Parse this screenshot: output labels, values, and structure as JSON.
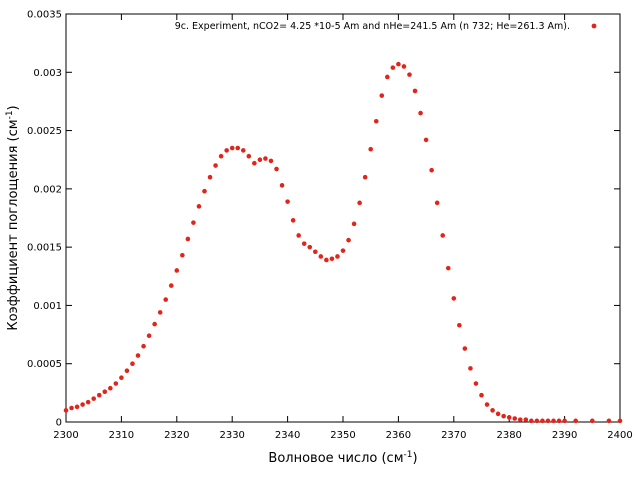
{
  "chart_data": {
    "type": "scatter",
    "xlabel": "Волновое число (см",
    "xlabel_sup": "-1",
    "xlabel_tail": ")",
    "ylabel": "Коэффициент поглощения (см",
    "ylabel_sup": "-1",
    "ylabel_tail": ")",
    "xlim": [
      2300,
      2400
    ],
    "ylim": [
      0,
      0.0035
    ],
    "x_ticks": [
      "2300",
      "2310",
      "2320",
      "2330",
      "2340",
      "2350",
      "2360",
      "2370",
      "2380",
      "2390",
      "2400"
    ],
    "y_ticks": [
      "0",
      "0.0005",
      "0.001",
      "0.0015",
      "0.002",
      "0.0025",
      "0.003",
      "0.0035"
    ],
    "grid": false,
    "legend_position": "top-right",
    "marker_color": "#e3241b",
    "series": [
      {
        "name": "9c. Experiment, nCO2= 4.25 *10-5 Am and nHe=241.5 Am (n  732; He=261.3 Am).",
        "x": [
          2300,
          2301,
          2302,
          2303,
          2304,
          2305,
          2306,
          2307,
          2308,
          2309,
          2310,
          2311,
          2312,
          2313,
          2314,
          2315,
          2316,
          2317,
          2318,
          2319,
          2320,
          2321,
          2322,
          2323,
          2324,
          2325,
          2326,
          2327,
          2328,
          2329,
          2330,
          2331,
          2332,
          2333,
          2334,
          2335,
          2336,
          2337,
          2338,
          2339,
          2340,
          2341,
          2342,
          2343,
          2344,
          2345,
          2346,
          2347,
          2348,
          2349,
          2350,
          2351,
          2352,
          2353,
          2354,
          2355,
          2356,
          2357,
          2358,
          2359,
          2360,
          2361,
          2362,
          2363,
          2364,
          2365,
          2366,
          2367,
          2368,
          2369,
          2370,
          2371,
          2372,
          2373,
          2374,
          2375,
          2376,
          2377,
          2378,
          2379,
          2380,
          2381,
          2382,
          2383,
          2384,
          2385,
          2386,
          2387,
          2388,
          2389,
          2390,
          2392,
          2395,
          2398,
          2400
        ],
        "y": [
          0.0001,
          0.00012,
          0.00013,
          0.00015,
          0.00017,
          0.0002,
          0.00023,
          0.00026,
          0.00029,
          0.00033,
          0.00038,
          0.00044,
          0.0005,
          0.00057,
          0.00065,
          0.00074,
          0.00084,
          0.00094,
          0.00105,
          0.00117,
          0.0013,
          0.00143,
          0.00157,
          0.00171,
          0.00185,
          0.00198,
          0.0021,
          0.0022,
          0.00228,
          0.00233,
          0.00235,
          0.00235,
          0.00233,
          0.00228,
          0.00222,
          0.00225,
          0.00226,
          0.00224,
          0.00217,
          0.00203,
          0.00189,
          0.00173,
          0.0016,
          0.00153,
          0.0015,
          0.00146,
          0.00142,
          0.00139,
          0.0014,
          0.00142,
          0.00147,
          0.00156,
          0.0017,
          0.00188,
          0.0021,
          0.00234,
          0.00258,
          0.0028,
          0.00296,
          0.00304,
          0.00307,
          0.00305,
          0.00298,
          0.00284,
          0.00265,
          0.00242,
          0.00216,
          0.00188,
          0.0016,
          0.00132,
          0.00106,
          0.00083,
          0.00063,
          0.00046,
          0.00033,
          0.00023,
          0.00015,
          0.0001,
          7e-05,
          5e-05,
          4e-05,
          3e-05,
          2e-05,
          2e-05,
          1e-05,
          1e-05,
          1e-05,
          1e-05,
          1e-05,
          1e-05,
          1e-05,
          1e-05,
          1e-05,
          1e-05,
          1e-05
        ]
      }
    ]
  }
}
